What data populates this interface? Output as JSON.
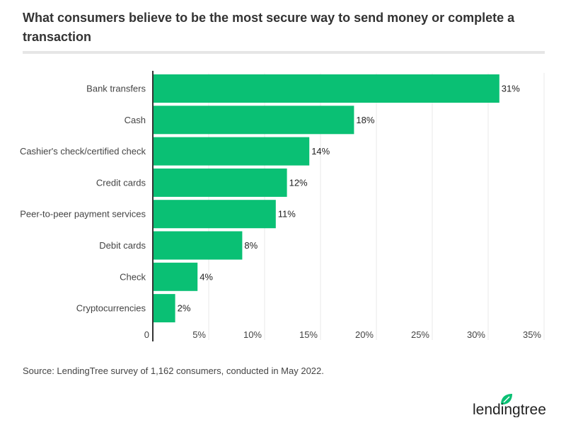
{
  "chart_data": {
    "type": "bar",
    "orientation": "horizontal",
    "title": "What consumers believe to be the most secure way to send money or complete a transaction",
    "categories": [
      "Bank transfers",
      "Cash",
      "Cashier's check/certified check",
      "Credit cards",
      "Peer-to-peer payment services",
      "Debit cards",
      "Check",
      "Cryptocurrencies"
    ],
    "values": [
      31,
      18,
      14,
      12,
      11,
      8,
      4,
      2
    ],
    "data_labels": [
      "31%",
      "18%",
      "14%",
      "12%",
      "11%",
      "8%",
      "4%",
      "2%"
    ],
    "xlim": [
      0,
      35
    ],
    "xticks": [
      0,
      5,
      10,
      15,
      20,
      25,
      30,
      35
    ],
    "xtick_labels": [
      "0",
      "5%",
      "10%",
      "15%",
      "20%",
      "25%",
      "30%",
      "35%"
    ],
    "grid": true,
    "bar_color": "#0ac074",
    "source": "Source: LendingTree survey of 1,162 consumers, conducted in May 2022."
  },
  "brand": {
    "logo_text": "lendingtree",
    "logo_color": "#0ac074"
  }
}
